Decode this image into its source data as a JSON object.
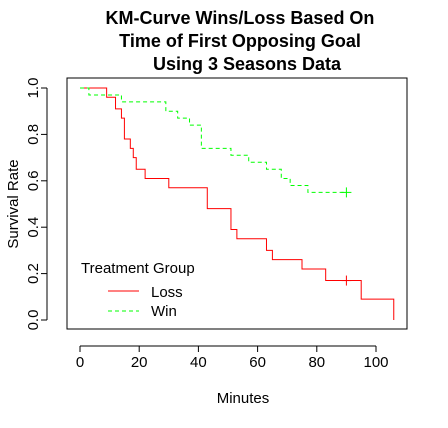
{
  "chart_data": {
    "type": "line",
    "title": "KM-Curve Wins/Loss Based On Time of First Opposing Goal Using 3 Seasons Data",
    "title_lines": [
      "KM-Curve Wins/Loss Based On",
      "Time of First Opposing Goal",
      "Using 3 Seasons Data"
    ],
    "xlabel": "Minutes",
    "ylabel": "Survival Rate",
    "xlim": [
      0,
      106
    ],
    "ylim": [
      0,
      1
    ],
    "x_ticks": [
      0,
      20,
      40,
      60,
      80,
      100
    ],
    "y_ticks": [
      0.0,
      0.2,
      0.4,
      0.6,
      0.8,
      1.0
    ],
    "y_tick_labels": [
      "0.0",
      "0.2",
      "0.4",
      "0.6",
      "0.8",
      "1.0"
    ],
    "grid": false,
    "legend": {
      "title": "Treatment Group",
      "position": "bottom-left"
    },
    "series": [
      {
        "name": "Loss",
        "color": "#ff0000",
        "line_style": "solid",
        "step": true,
        "x": [
          0,
          9,
          12,
          14,
          15,
          17,
          18,
          19,
          22,
          25,
          30,
          38,
          43,
          51,
          53,
          63,
          65,
          75,
          83,
          95,
          106
        ],
        "y": [
          1.0,
          0.96,
          0.91,
          0.87,
          0.78,
          0.74,
          0.7,
          0.65,
          0.61,
          0.61,
          0.57,
          0.57,
          0.48,
          0.39,
          0.35,
          0.3,
          0.26,
          0.22,
          0.17,
          0.09,
          0.0
        ],
        "censored": [
          {
            "x": 90,
            "y": 0.17
          }
        ]
      },
      {
        "name": "Win",
        "color": "#00ff00",
        "line_style": "dashed",
        "step": true,
        "x": [
          0,
          3,
          10,
          14,
          26,
          29,
          33,
          37,
          41,
          51,
          57,
          63,
          68,
          71,
          77,
          90
        ],
        "y": [
          1.0,
          0.97,
          0.97,
          0.94,
          0.94,
          0.9,
          0.87,
          0.84,
          0.74,
          0.71,
          0.68,
          0.65,
          0.61,
          0.58,
          0.55,
          0.55
        ],
        "censored": [
          {
            "x": 90,
            "y": 0.55
          }
        ]
      }
    ]
  }
}
